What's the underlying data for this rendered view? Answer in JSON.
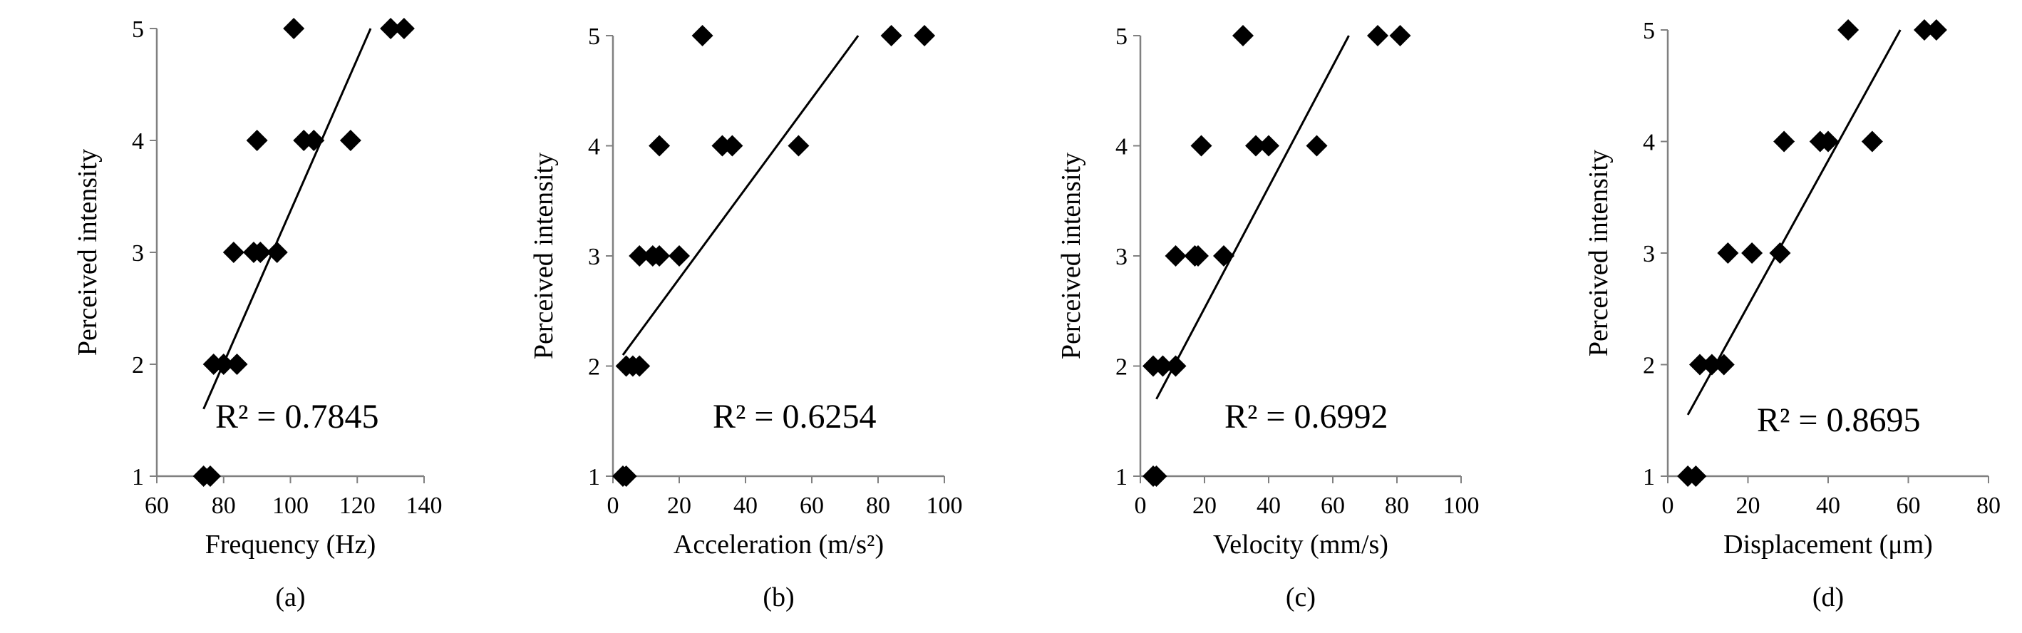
{
  "figure": {
    "description_labels": [
      "(a)",
      "(b)",
      "(c)",
      "(d)"
    ]
  },
  "chart_data": [
    {
      "type": "scatter",
      "panel_label": "(a)",
      "title": "",
      "xlabel": "Frequency (Hz)",
      "ylabel": "Perceived  intensity",
      "xlim": [
        60,
        140
      ],
      "ylim": [
        1,
        5
      ],
      "xticks": [
        60,
        80,
        100,
        120,
        140
      ],
      "yticks": [
        1,
        2,
        3,
        4,
        5
      ],
      "points": [
        [
          74,
          1
        ],
        [
          76,
          1
        ],
        [
          77,
          2
        ],
        [
          80,
          2
        ],
        [
          84,
          2
        ],
        [
          83,
          3
        ],
        [
          89,
          3
        ],
        [
          91,
          3
        ],
        [
          96,
          3
        ],
        [
          90,
          4
        ],
        [
          104,
          4
        ],
        [
          107,
          4
        ],
        [
          118,
          4
        ],
        [
          101,
          5
        ],
        [
          130,
          5
        ],
        [
          134,
          5
        ]
      ],
      "trendline": {
        "x": [
          74,
          124
        ],
        "y": [
          1.6,
          5.0
        ]
      },
      "r_squared_label": "R² = 0.7845"
    },
    {
      "type": "scatter",
      "panel_label": "(b)",
      "title": "",
      "xlabel": "Acceleration (m/s²)",
      "ylabel": "Perceived  intensity",
      "xlim": [
        0,
        100
      ],
      "ylim": [
        1,
        5
      ],
      "xticks": [
        0,
        20,
        40,
        60,
        80,
        100
      ],
      "yticks": [
        1,
        2,
        3,
        4,
        5
      ],
      "points": [
        [
          3,
          1
        ],
        [
          4,
          1
        ],
        [
          4,
          2
        ],
        [
          6,
          2
        ],
        [
          8,
          2
        ],
        [
          8,
          3
        ],
        [
          12,
          3
        ],
        [
          14,
          3
        ],
        [
          20,
          3
        ],
        [
          14,
          4
        ],
        [
          33,
          4
        ],
        [
          36,
          4
        ],
        [
          56,
          4
        ],
        [
          27,
          5
        ],
        [
          84,
          5
        ],
        [
          94,
          5
        ]
      ],
      "trendline": {
        "x": [
          3,
          74
        ],
        "y": [
          2.1,
          5.0
        ]
      },
      "r_squared_label": "R² = 0.6254"
    },
    {
      "type": "scatter",
      "panel_label": "(c)",
      "title": "",
      "xlabel": "Velocity (mm/s)",
      "ylabel": "Perceived  intensity",
      "xlim": [
        0,
        100
      ],
      "ylim": [
        1,
        5
      ],
      "xticks": [
        0,
        20,
        40,
        60,
        80,
        100
      ],
      "yticks": [
        1,
        2,
        3,
        4,
        5
      ],
      "points": [
        [
          4,
          1
        ],
        [
          5,
          1
        ],
        [
          4,
          2
        ],
        [
          7,
          2
        ],
        [
          11,
          2
        ],
        [
          11,
          3
        ],
        [
          17,
          3
        ],
        [
          18,
          3
        ],
        [
          26,
          3
        ],
        [
          19,
          4
        ],
        [
          36,
          4
        ],
        [
          40,
          4
        ],
        [
          55,
          4
        ],
        [
          32,
          5
        ],
        [
          74,
          5
        ],
        [
          81,
          5
        ]
      ],
      "trendline": {
        "x": [
          5,
          65
        ],
        "y": [
          1.7,
          5.0
        ]
      },
      "r_squared_label": "R² = 0.6992"
    },
    {
      "type": "scatter",
      "panel_label": "(d)",
      "title": "",
      "xlabel": "Displacement (μm)",
      "ylabel": "Perceived  intensity",
      "xlim": [
        0,
        80
      ],
      "ylim": [
        1,
        5
      ],
      "xticks": [
        0,
        20,
        40,
        60,
        80
      ],
      "yticks": [
        1,
        2,
        3,
        4,
        5
      ],
      "points": [
        [
          5,
          1
        ],
        [
          7,
          1
        ],
        [
          8,
          2
        ],
        [
          11,
          2
        ],
        [
          14,
          2
        ],
        [
          15,
          3
        ],
        [
          21,
          3
        ],
        [
          28,
          3
        ],
        [
          29,
          4
        ],
        [
          38,
          4
        ],
        [
          40,
          4
        ],
        [
          51,
          4
        ],
        [
          45,
          5
        ],
        [
          64,
          5
        ],
        [
          67,
          5
        ]
      ],
      "trendline": {
        "x": [
          5,
          58
        ],
        "y": [
          1.55,
          5.0
        ]
      },
      "r_squared_label": "R² = 0.8695"
    }
  ]
}
